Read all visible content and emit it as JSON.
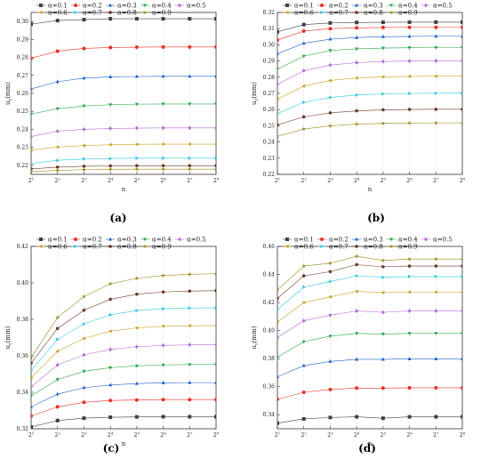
{
  "chart_data": [
    {
      "type": "line",
      "panel_label": "(a)",
      "xlabel": "n",
      "ylabel": "u",
      "ylabel_sub": "z",
      "ylabel_unit": "(mm)",
      "x_ticks": [
        "1",
        "2",
        "3",
        "4",
        "5",
        "6",
        "7",
        "8"
      ],
      "x_tick_base": "2",
      "x": [
        1,
        2,
        3,
        4,
        5,
        6,
        7,
        8
      ],
      "ylim": [
        0.215,
        0.305
      ],
      "y_ticks": [
        "0.22",
        "0.23",
        "0.24",
        "0.25",
        "0.26",
        "0.27",
        "0.28",
        "0.29",
        "0.30"
      ],
      "y_tick_values": [
        0.22,
        0.23,
        0.24,
        0.25,
        0.26,
        0.27,
        0.28,
        0.29,
        0.3
      ],
      "legend_position": "top",
      "series": [
        {
          "name": "α=0.1",
          "values": [
            0.2985,
            0.3005,
            0.301,
            0.3015,
            0.3015,
            0.3015,
            0.3015,
            0.3015
          ]
        },
        {
          "name": "α=0.2",
          "values": [
            0.2795,
            0.2835,
            0.285,
            0.2855,
            0.2857,
            0.2858,
            0.2858,
            0.2858
          ]
        },
        {
          "name": "α=0.3",
          "values": [
            0.2625,
            0.2665,
            0.2685,
            0.2692,
            0.2694,
            0.2695,
            0.2695,
            0.2695
          ]
        },
        {
          "name": "α=0.4",
          "values": [
            0.2485,
            0.2515,
            0.253,
            0.2537,
            0.254,
            0.2541,
            0.2541,
            0.2541
          ]
        },
        {
          "name": "α=0.5",
          "values": [
            0.236,
            0.239,
            0.24,
            0.2405,
            0.2407,
            0.2408,
            0.2408,
            0.2408
          ]
        },
        {
          "name": "α=0.6",
          "values": [
            0.2285,
            0.2302,
            0.231,
            0.2315,
            0.2317,
            0.2318,
            0.2318,
            0.2318
          ]
        },
        {
          "name": "α=0.7",
          "values": [
            0.221,
            0.2228,
            0.2235,
            0.2238,
            0.224,
            0.224,
            0.224,
            0.224
          ]
        },
        {
          "name": "α=0.8",
          "values": [
            0.218,
            0.219,
            0.2195,
            0.2197,
            0.2198,
            0.2198,
            0.2198,
            0.2198
          ]
        },
        {
          "name": "α=0.9",
          "values": [
            0.2165,
            0.2172,
            0.2176,
            0.2178,
            0.2179,
            0.2179,
            0.2179,
            0.2179
          ]
        }
      ]
    },
    {
      "type": "line",
      "panel_label": "(b)",
      "xlabel": "n",
      "ylabel": "u",
      "ylabel_sub": "z",
      "ylabel_unit": "(mm)",
      "x_ticks": [
        "1",
        "2",
        "3",
        "4",
        "5",
        "6",
        "7",
        "8"
      ],
      "x_tick_base": "2",
      "x": [
        1,
        2,
        3,
        4,
        5,
        6,
        7,
        8
      ],
      "ylim": [
        0.22,
        0.32
      ],
      "y_ticks": [
        "0.22",
        "0.23",
        "0.24",
        "0.25",
        "0.26",
        "0.27",
        "0.28",
        "0.29",
        "0.30",
        "0.31",
        "0.32"
      ],
      "y_tick_values": [
        0.22,
        0.23,
        0.24,
        0.25,
        0.26,
        0.27,
        0.28,
        0.29,
        0.3,
        0.31,
        0.32
      ],
      "legend_position": "top",
      "series": [
        {
          "name": "α=0.1",
          "values": [
            0.308,
            0.3125,
            0.3135,
            0.3138,
            0.3139,
            0.314,
            0.314,
            0.314
          ]
        },
        {
          "name": "α=0.2",
          "values": [
            0.303,
            0.3085,
            0.31,
            0.3105,
            0.3107,
            0.3108,
            0.3108,
            0.3108
          ]
        },
        {
          "name": "α=0.3",
          "values": [
            0.2945,
            0.301,
            0.3035,
            0.3045,
            0.305,
            0.3052,
            0.3053,
            0.3053
          ]
        },
        {
          "name": "α=0.4",
          "values": [
            0.285,
            0.293,
            0.2965,
            0.2975,
            0.298,
            0.2982,
            0.2983,
            0.2983
          ]
        },
        {
          "name": "α=0.5",
          "values": [
            0.2755,
            0.284,
            0.2875,
            0.289,
            0.2897,
            0.29,
            0.2901,
            0.2901
          ]
        },
        {
          "name": "α=0.6",
          "values": [
            0.2665,
            0.2745,
            0.278,
            0.2795,
            0.2802,
            0.2805,
            0.2806,
            0.2806
          ]
        },
        {
          "name": "α=0.7",
          "values": [
            0.2575,
            0.2645,
            0.2675,
            0.269,
            0.2697,
            0.27,
            0.2701,
            0.2701
          ]
        },
        {
          "name": "α=0.8",
          "values": [
            0.2505,
            0.2555,
            0.258,
            0.2592,
            0.2598,
            0.2601,
            0.2602,
            0.2602
          ]
        },
        {
          "name": "α=0.9",
          "values": [
            0.2435,
            0.248,
            0.25,
            0.251,
            0.2515,
            0.2517,
            0.2518,
            0.2518
          ]
        }
      ]
    },
    {
      "type": "line",
      "panel_label": "(c)",
      "xlabel": "n",
      "ylabel": "u",
      "ylabel_sub": "z",
      "ylabel_unit": "(mm)",
      "x_ticks": [
        "1",
        "2",
        "3",
        "4",
        "5",
        "6",
        "7",
        "8"
      ],
      "x_tick_base": "2",
      "x": [
        1,
        2,
        3,
        4,
        5,
        6,
        7,
        8
      ],
      "ylim": [
        0.32,
        0.42
      ],
      "y_ticks": [
        "0.32",
        "0.34",
        "0.36",
        "0.38",
        "0.40",
        "0.42"
      ],
      "y_tick_values": [
        0.32,
        0.34,
        0.36,
        0.38,
        0.4,
        0.42
      ],
      "legend_position": "top",
      "series": [
        {
          "name": "α=0.1",
          "values": [
            0.321,
            0.3245,
            0.3258,
            0.3263,
            0.3265,
            0.3266,
            0.3266,
            0.3266
          ]
        },
        {
          "name": "α=0.2",
          "values": [
            0.327,
            0.332,
            0.3345,
            0.3355,
            0.3358,
            0.336,
            0.336,
            0.336
          ]
        },
        {
          "name": "α=0.3",
          "values": [
            0.332,
            0.339,
            0.3425,
            0.344,
            0.3448,
            0.3452,
            0.3453,
            0.3453
          ]
        },
        {
          "name": "α=0.4",
          "values": [
            0.338,
            0.347,
            0.3515,
            0.3535,
            0.3545,
            0.355,
            0.3552,
            0.3552
          ]
        },
        {
          "name": "α=0.5",
          "values": [
            0.343,
            0.355,
            0.3605,
            0.3635,
            0.365,
            0.3657,
            0.366,
            0.366
          ]
        },
        {
          "name": "α=0.6",
          "values": [
            0.348,
            0.3625,
            0.3695,
            0.3735,
            0.3753,
            0.3762,
            0.3765,
            0.3766
          ]
        },
        {
          "name": "α=0.7",
          "values": [
            0.352,
            0.369,
            0.3775,
            0.3825,
            0.3848,
            0.3858,
            0.3862,
            0.3863
          ]
        },
        {
          "name": "α=0.8",
          "values": [
            0.356,
            0.375,
            0.385,
            0.391,
            0.3938,
            0.395,
            0.3955,
            0.3957
          ]
        },
        {
          "name": "α=0.9",
          "values": [
            0.359,
            0.381,
            0.3925,
            0.3995,
            0.4025,
            0.404,
            0.4047,
            0.405
          ]
        }
      ]
    },
    {
      "type": "line",
      "panel_label": "(d)",
      "xlabel": "n",
      "ylabel": "u",
      "ylabel_sub": "z",
      "ylabel_unit": "(mm)",
      "x_ticks": [
        "1",
        "2",
        "3",
        "4",
        "5",
        "6",
        "7",
        "8"
      ],
      "x_tick_base": "2",
      "x": [
        1,
        2,
        3,
        4,
        5,
        6,
        7,
        8
      ],
      "ylim": [
        0.33,
        0.46
      ],
      "y_ticks": [
        "0.34",
        "0.36",
        "0.38",
        "0.40",
        "0.42",
        "0.44",
        "0.46"
      ],
      "y_tick_values": [
        0.34,
        0.36,
        0.38,
        0.4,
        0.42,
        0.44,
        0.46
      ],
      "legend_position": "top",
      "series": [
        {
          "name": "α=0.1",
          "values": [
            0.334,
            0.337,
            0.338,
            0.3385,
            0.3375,
            0.3385,
            0.3385,
            0.3385
          ]
        },
        {
          "name": "α=0.2",
          "values": [
            0.351,
            0.356,
            0.358,
            0.359,
            0.359,
            0.3592,
            0.3592,
            0.3592
          ]
        },
        {
          "name": "α=0.3",
          "values": [
            0.367,
            0.375,
            0.378,
            0.3795,
            0.3795,
            0.3798,
            0.3798,
            0.3798
          ]
        },
        {
          "name": "α=0.4",
          "values": [
            0.381,
            0.392,
            0.396,
            0.398,
            0.3975,
            0.398,
            0.398,
            0.398
          ]
        },
        {
          "name": "α=0.5",
          "values": [
            0.395,
            0.407,
            0.411,
            0.414,
            0.413,
            0.414,
            0.414,
            0.414
          ]
        },
        {
          "name": "α=0.6",
          "values": [
            0.406,
            0.42,
            0.424,
            0.428,
            0.427,
            0.4275,
            0.4275,
            0.4275
          ]
        },
        {
          "name": "α=0.7",
          "values": [
            0.415,
            0.431,
            0.435,
            0.439,
            0.438,
            0.4385,
            0.4385,
            0.4385
          ]
        },
        {
          "name": "α=0.8",
          "values": [
            0.423,
            0.439,
            0.442,
            0.447,
            0.4455,
            0.446,
            0.446,
            0.446
          ]
        },
        {
          "name": "α=0.9",
          "values": [
            0.429,
            0.446,
            0.448,
            0.453,
            0.45,
            0.451,
            0.451,
            0.451
          ]
        }
      ]
    }
  ],
  "series_styles": [
    {
      "color": "#3f3f3f",
      "marker": "square"
    },
    {
      "color": "#e8312a",
      "marker": "circle"
    },
    {
      "color": "#1f5fc8",
      "marker": "triangle-up"
    },
    {
      "color": "#2aa84a",
      "marker": "triangle-down"
    },
    {
      "color": "#b86bd6",
      "marker": "diamond"
    },
    {
      "color": "#c9a020",
      "marker": "triangle-left"
    },
    {
      "color": "#2fc6e0",
      "marker": "triangle-right"
    },
    {
      "color": "#6b3a2a",
      "marker": "hexagon"
    },
    {
      "color": "#9a8a18",
      "marker": "star"
    }
  ],
  "gridline_color": "#cccccc"
}
